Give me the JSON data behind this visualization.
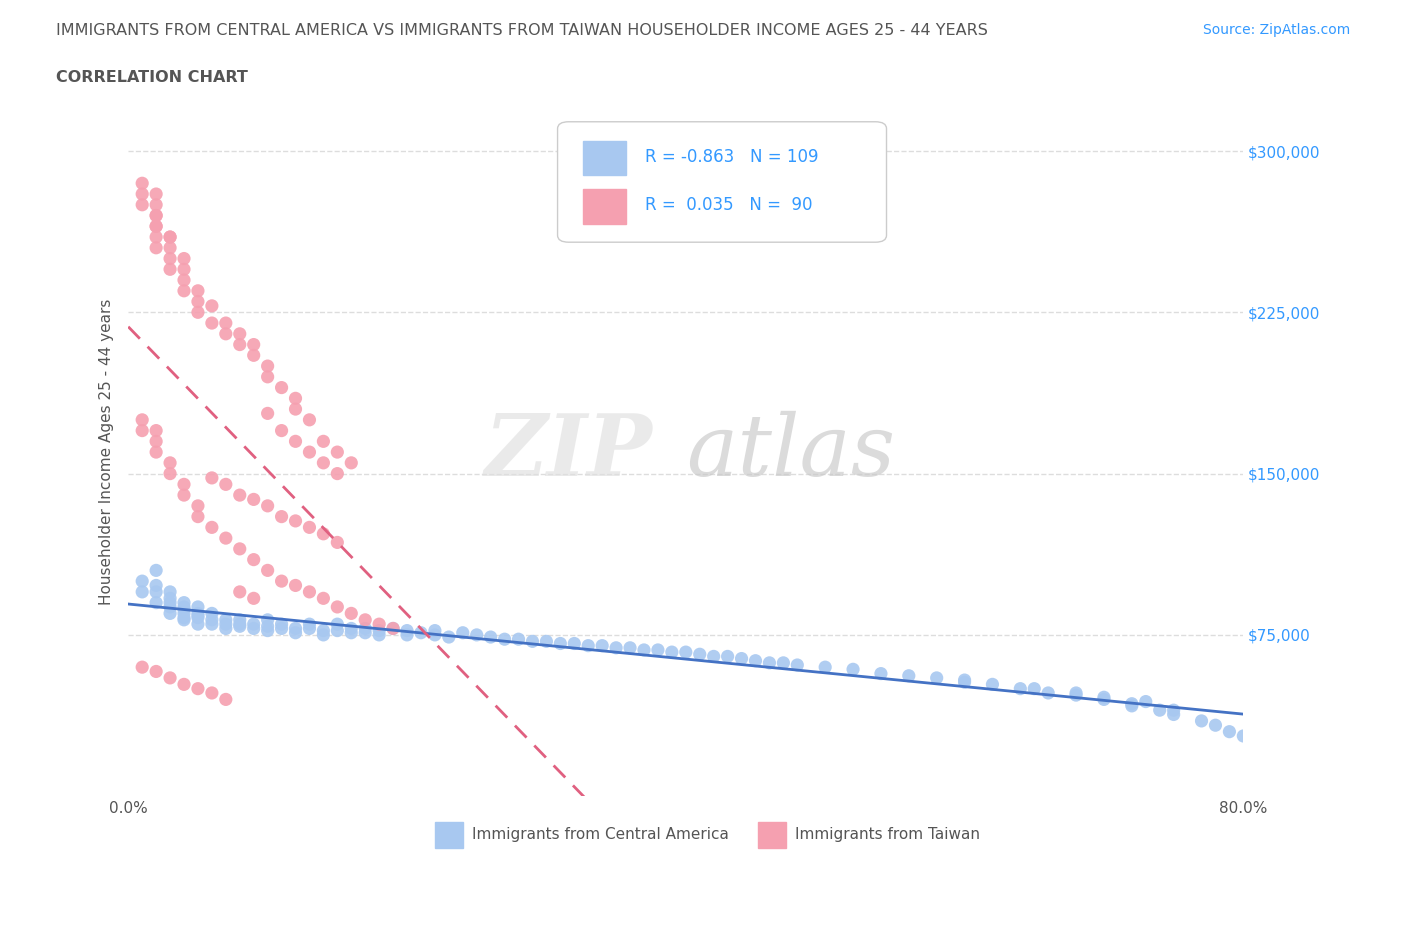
{
  "title_line1": "IMMIGRANTS FROM CENTRAL AMERICA VS IMMIGRANTS FROM TAIWAN HOUSEHOLDER INCOME AGES 25 - 44 YEARS",
  "title_line2": "CORRELATION CHART",
  "source_text": "Source: ZipAtlas.com",
  "ylabel": "Householder Income Ages 25 - 44 years",
  "xmin": 0.0,
  "xmax": 0.8,
  "ymin": 0,
  "ymax": 320000,
  "yticks": [
    0,
    75000,
    150000,
    225000,
    300000
  ],
  "xticks": [
    0.0,
    0.1,
    0.2,
    0.3,
    0.4,
    0.5,
    0.6,
    0.7,
    0.8
  ],
  "blue_color": "#a8c8f0",
  "pink_color": "#f5a0b0",
  "blue_line_color": "#4472c4",
  "pink_line_color": "#e06080",
  "blue_R": -0.863,
  "blue_N": 109,
  "pink_R": 0.035,
  "pink_N": 90,
  "watermark_zip": "ZIP",
  "watermark_atlas": "atlas",
  "legend_label_blue": "Immigrants from Central America",
  "legend_label_pink": "Immigrants from Taiwan",
  "title_color": "#555555",
  "axis_color": "#555555",
  "grid_color": "#dddddd",
  "legend_text_color": "#3399ff",
  "ytick_color": "#3399ff",
  "source_color": "#3399ff",
  "blue_scatter_x": [
    0.01,
    0.01,
    0.02,
    0.02,
    0.02,
    0.02,
    0.03,
    0.03,
    0.03,
    0.03,
    0.03,
    0.04,
    0.04,
    0.04,
    0.04,
    0.04,
    0.04,
    0.05,
    0.05,
    0.05,
    0.05,
    0.05,
    0.06,
    0.06,
    0.06,
    0.07,
    0.07,
    0.07,
    0.08,
    0.08,
    0.08,
    0.09,
    0.09,
    0.1,
    0.1,
    0.1,
    0.11,
    0.11,
    0.12,
    0.12,
    0.13,
    0.13,
    0.14,
    0.14,
    0.15,
    0.15,
    0.16,
    0.16,
    0.17,
    0.17,
    0.18,
    0.18,
    0.19,
    0.2,
    0.2,
    0.21,
    0.22,
    0.22,
    0.23,
    0.24,
    0.25,
    0.26,
    0.27,
    0.28,
    0.29,
    0.3,
    0.31,
    0.32,
    0.33,
    0.34,
    0.35,
    0.36,
    0.37,
    0.38,
    0.39,
    0.4,
    0.41,
    0.42,
    0.43,
    0.44,
    0.45,
    0.46,
    0.47,
    0.48,
    0.5,
    0.52,
    0.54,
    0.56,
    0.58,
    0.6,
    0.62,
    0.64,
    0.66,
    0.68,
    0.7,
    0.72,
    0.6,
    0.65,
    0.7,
    0.72,
    0.74,
    0.75,
    0.77,
    0.78,
    0.79,
    0.8,
    0.68,
    0.73,
    0.75
  ],
  "blue_scatter_y": [
    100000,
    95000,
    105000,
    98000,
    95000,
    90000,
    95000,
    90000,
    88000,
    85000,
    92000,
    88000,
    85000,
    82000,
    90000,
    87000,
    83000,
    85000,
    83000,
    80000,
    88000,
    84000,
    82000,
    80000,
    85000,
    82000,
    80000,
    78000,
    80000,
    82000,
    79000,
    80000,
    78000,
    79000,
    77000,
    82000,
    80000,
    78000,
    78000,
    76000,
    78000,
    80000,
    77000,
    75000,
    77000,
    80000,
    78000,
    76000,
    76000,
    78000,
    77000,
    75000,
    78000,
    77000,
    75000,
    76000,
    75000,
    77000,
    74000,
    76000,
    75000,
    74000,
    73000,
    73000,
    72000,
    72000,
    71000,
    71000,
    70000,
    70000,
    69000,
    69000,
    68000,
    68000,
    67000,
    67000,
    66000,
    65000,
    65000,
    64000,
    63000,
    62000,
    62000,
    61000,
    60000,
    59000,
    57000,
    56000,
    55000,
    53000,
    52000,
    50000,
    48000,
    47000,
    45000,
    43000,
    54000,
    50000,
    46000,
    42000,
    40000,
    38000,
    35000,
    33000,
    30000,
    28000,
    48000,
    44000,
    40000
  ],
  "pink_scatter_x": [
    0.01,
    0.01,
    0.01,
    0.02,
    0.02,
    0.02,
    0.02,
    0.02,
    0.02,
    0.02,
    0.02,
    0.03,
    0.03,
    0.03,
    0.03,
    0.03,
    0.04,
    0.04,
    0.04,
    0.04,
    0.05,
    0.05,
    0.05,
    0.06,
    0.06,
    0.07,
    0.07,
    0.08,
    0.08,
    0.09,
    0.09,
    0.1,
    0.1,
    0.11,
    0.12,
    0.12,
    0.13,
    0.14,
    0.15,
    0.16,
    0.01,
    0.01,
    0.02,
    0.02,
    0.02,
    0.03,
    0.03,
    0.04,
    0.04,
    0.05,
    0.05,
    0.06,
    0.07,
    0.08,
    0.09,
    0.1,
    0.11,
    0.12,
    0.13,
    0.14,
    0.15,
    0.16,
    0.17,
    0.18,
    0.19,
    0.06,
    0.07,
    0.08,
    0.09,
    0.1,
    0.11,
    0.12,
    0.13,
    0.14,
    0.15,
    0.01,
    0.02,
    0.03,
    0.04,
    0.05,
    0.06,
    0.07,
    0.08,
    0.09,
    0.1,
    0.11,
    0.12,
    0.13,
    0.14,
    0.15
  ],
  "pink_scatter_y": [
    285000,
    280000,
    275000,
    270000,
    265000,
    260000,
    255000,
    280000,
    275000,
    270000,
    265000,
    260000,
    250000,
    245000,
    255000,
    260000,
    245000,
    240000,
    235000,
    250000,
    235000,
    230000,
    225000,
    220000,
    228000,
    215000,
    220000,
    210000,
    215000,
    205000,
    210000,
    200000,
    195000,
    190000,
    185000,
    180000,
    175000,
    165000,
    160000,
    155000,
    175000,
    170000,
    165000,
    160000,
    170000,
    155000,
    150000,
    145000,
    140000,
    135000,
    130000,
    125000,
    120000,
    115000,
    110000,
    105000,
    100000,
    98000,
    95000,
    92000,
    88000,
    85000,
    82000,
    80000,
    78000,
    148000,
    145000,
    140000,
    138000,
    135000,
    130000,
    128000,
    125000,
    122000,
    118000,
    60000,
    58000,
    55000,
    52000,
    50000,
    48000,
    45000,
    95000,
    92000,
    178000,
    170000,
    165000,
    160000,
    155000,
    150000
  ]
}
